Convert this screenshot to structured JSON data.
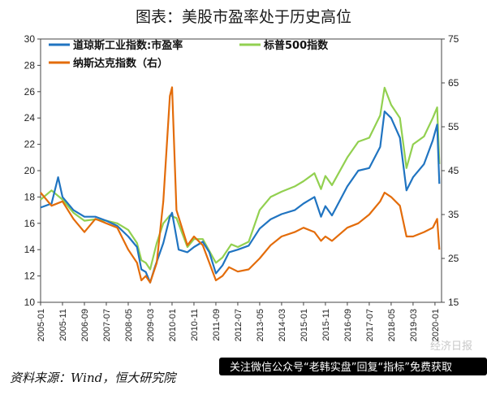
{
  "title": "图表：美股市盈率处于历史高位",
  "source_note": "资料来源：Wind，恒大研究院",
  "banner": {
    "text": "关注微信公众号“老韩实盘”回复“指标”免费获取",
    "watermark": "经济日报"
  },
  "colors": {
    "dow": "#2074c1",
    "sp500": "#92d050",
    "nasdaq": "#e36c0a",
    "banner_bg": "#000000"
  },
  "chart_data": {
    "type": "line",
    "x_labels": [
      "2005-01",
      "2005-11",
      "2006-09",
      "2007-07",
      "2008-05",
      "2009-03",
      "2010-01",
      "2010-11",
      "2011-09",
      "2012-07",
      "2013-05",
      "2014-03",
      "2015-01",
      "2015-11",
      "2016-09",
      "2017-07",
      "2018-05",
      "2019-03",
      "2020-01"
    ],
    "y_left": {
      "min": 10,
      "max": 30,
      "ticks": [
        10,
        12,
        14,
        16,
        18,
        20,
        22,
        24,
        26,
        28,
        30
      ]
    },
    "y_right": {
      "min": 15,
      "max": 75,
      "ticks": [
        15,
        25,
        35,
        45,
        55,
        65,
        75
      ]
    },
    "legend": [
      {
        "label": "道琼斯工业指数:市盈率",
        "color": "#2074c1",
        "series": "dow"
      },
      {
        "label": "标普500指数",
        "color": "#92d050",
        "series": "sp500"
      },
      {
        "label": "纳斯达克指数（右）",
        "color": "#e36c0a",
        "series": "nasdaq"
      }
    ],
    "series": [
      {
        "name": "道琼斯工业指数:市盈率",
        "axis": "left",
        "color": "#2074c1",
        "points": [
          [
            "2005-01",
            17.2
          ],
          [
            "2005-06",
            17.5
          ],
          [
            "2005-09",
            19.5
          ],
          [
            "2005-11",
            18.0
          ],
          [
            "2006-04",
            17.0
          ],
          [
            "2006-09",
            16.5
          ],
          [
            "2007-02",
            16.5
          ],
          [
            "2007-07",
            16.2
          ],
          [
            "2007-12",
            15.8
          ],
          [
            "2008-05",
            15.0
          ],
          [
            "2008-09",
            14.2
          ],
          [
            "2008-11",
            12.5
          ],
          [
            "2009-01",
            12.3
          ],
          [
            "2009-03",
            11.5
          ],
          [
            "2009-05",
            12.6
          ],
          [
            "2009-09",
            14.5
          ],
          [
            "2009-12",
            16.5
          ],
          [
            "2010-01",
            16.8
          ],
          [
            "2010-04",
            14.0
          ],
          [
            "2010-08",
            13.8
          ],
          [
            "2010-11",
            14.2
          ],
          [
            "2011-03",
            14.6
          ],
          [
            "2011-06",
            13.8
          ],
          [
            "2011-09",
            12.2
          ],
          [
            "2011-12",
            12.8
          ],
          [
            "2012-03",
            13.8
          ],
          [
            "2012-07",
            14.0
          ],
          [
            "2012-12",
            14.3
          ],
          [
            "2013-05",
            15.6
          ],
          [
            "2013-10",
            16.3
          ],
          [
            "2014-03",
            16.7
          ],
          [
            "2014-09",
            17.0
          ],
          [
            "2015-01",
            17.5
          ],
          [
            "2015-06",
            18.0
          ],
          [
            "2015-09",
            16.5
          ],
          [
            "2015-11",
            17.3
          ],
          [
            "2016-02",
            16.6
          ],
          [
            "2016-09",
            18.8
          ],
          [
            "2017-02",
            20.0
          ],
          [
            "2017-07",
            20.2
          ],
          [
            "2017-12",
            21.8
          ],
          [
            "2018-02",
            24.5
          ],
          [
            "2018-05",
            24.0
          ],
          [
            "2018-09",
            22.5
          ],
          [
            "2018-12",
            18.5
          ],
          [
            "2019-03",
            19.5
          ],
          [
            "2019-08",
            20.5
          ],
          [
            "2019-12",
            22.3
          ],
          [
            "2020-02",
            23.5
          ],
          [
            "2020-03",
            19.0
          ]
        ]
      },
      {
        "name": "标普500指数",
        "axis": "left",
        "color": "#92d050",
        "points": [
          [
            "2005-01",
            17.8
          ],
          [
            "2005-06",
            18.5
          ],
          [
            "2005-11",
            17.8
          ],
          [
            "2006-04",
            16.8
          ],
          [
            "2006-09",
            16.2
          ],
          [
            "2007-02",
            16.3
          ],
          [
            "2007-07",
            16.2
          ],
          [
            "2007-12",
            16.0
          ],
          [
            "2008-05",
            15.5
          ],
          [
            "2008-09",
            14.5
          ],
          [
            "2008-11",
            13.2
          ],
          [
            "2009-01",
            13.0
          ],
          [
            "2009-03",
            12.5
          ],
          [
            "2009-06",
            14.5
          ],
          [
            "2009-09",
            16.0
          ],
          [
            "2009-12",
            16.6
          ],
          [
            "2010-03",
            16.4
          ],
          [
            "2010-08",
            14.2
          ],
          [
            "2010-11",
            14.8
          ],
          [
            "2011-03",
            14.8
          ],
          [
            "2011-09",
            13.0
          ],
          [
            "2011-12",
            13.4
          ],
          [
            "2012-04",
            14.4
          ],
          [
            "2012-07",
            14.2
          ],
          [
            "2012-12",
            14.6
          ],
          [
            "2013-05",
            17.0
          ],
          [
            "2013-10",
            18.0
          ],
          [
            "2014-03",
            18.4
          ],
          [
            "2014-09",
            18.8
          ],
          [
            "2015-01",
            19.2
          ],
          [
            "2015-06",
            19.8
          ],
          [
            "2015-09",
            18.6
          ],
          [
            "2015-11",
            19.6
          ],
          [
            "2016-02",
            18.9
          ],
          [
            "2016-09",
            21.0
          ],
          [
            "2017-02",
            22.2
          ],
          [
            "2017-07",
            22.5
          ],
          [
            "2017-12",
            24.2
          ],
          [
            "2018-02",
            26.3
          ],
          [
            "2018-05",
            25.0
          ],
          [
            "2018-09",
            24.0
          ],
          [
            "2018-12",
            20.2
          ],
          [
            "2019-03",
            22.0
          ],
          [
            "2019-08",
            22.6
          ],
          [
            "2019-12",
            24.0
          ],
          [
            "2020-02",
            24.8
          ],
          [
            "2020-03",
            20.5
          ]
        ]
      },
      {
        "name": "纳斯达克指数（右）",
        "axis": "right",
        "color": "#e36c0a",
        "points": [
          [
            "2005-01",
            40
          ],
          [
            "2005-06",
            37
          ],
          [
            "2005-11",
            38
          ],
          [
            "2006-04",
            34
          ],
          [
            "2006-09",
            31
          ],
          [
            "2007-02",
            34
          ],
          [
            "2007-07",
            33
          ],
          [
            "2007-12",
            32
          ],
          [
            "2008-05",
            27
          ],
          [
            "2008-09",
            24
          ],
          [
            "2008-11",
            20
          ],
          [
            "2009-01",
            21
          ],
          [
            "2009-03",
            19.5
          ],
          [
            "2009-06",
            24
          ],
          [
            "2009-09",
            38
          ],
          [
            "2009-12",
            62
          ],
          [
            "2010-01",
            64
          ],
          [
            "2010-03",
            36
          ],
          [
            "2010-08",
            28
          ],
          [
            "2010-11",
            30
          ],
          [
            "2011-03",
            28
          ],
          [
            "2011-06",
            24
          ],
          [
            "2011-09",
            20
          ],
          [
            "2011-12",
            21
          ],
          [
            "2012-03",
            23
          ],
          [
            "2012-07",
            22
          ],
          [
            "2012-12",
            22.5
          ],
          [
            "2013-05",
            25
          ],
          [
            "2013-10",
            28
          ],
          [
            "2014-03",
            30
          ],
          [
            "2014-09",
            31
          ],
          [
            "2015-01",
            32
          ],
          [
            "2015-06",
            31
          ],
          [
            "2015-09",
            29
          ],
          [
            "2015-11",
            30
          ],
          [
            "2016-02",
            29
          ],
          [
            "2016-09",
            32
          ],
          [
            "2017-02",
            33
          ],
          [
            "2017-07",
            35
          ],
          [
            "2017-12",
            38
          ],
          [
            "2018-02",
            40
          ],
          [
            "2018-05",
            39
          ],
          [
            "2018-09",
            37
          ],
          [
            "2018-12",
            30
          ],
          [
            "2019-03",
            30
          ],
          [
            "2019-08",
            31
          ],
          [
            "2019-12",
            32
          ],
          [
            "2020-02",
            34
          ],
          [
            "2020-03",
            27
          ]
        ]
      }
    ]
  }
}
